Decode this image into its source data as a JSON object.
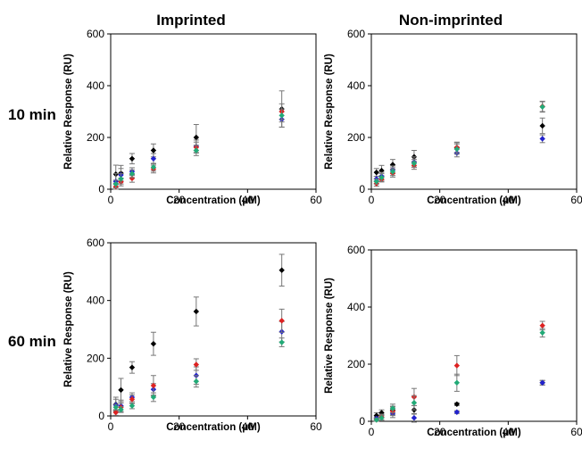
{
  "figure": {
    "col_titles": [
      "Imprinted",
      "Non-imprinted"
    ],
    "row_titles": [
      "10 min",
      "60 min"
    ]
  },
  "chart_data": [
    {
      "type": "scatter",
      "column": "Imprinted",
      "row": "10 min",
      "xlabel": "Concentration (μM)",
      "ylabel": "Relative Response (RU)",
      "xlim": [
        0,
        60
      ],
      "ylim": [
        0,
        600
      ],
      "xticks": [
        0,
        20,
        40,
        60
      ],
      "yticks": [
        0,
        200,
        400,
        600
      ],
      "x": [
        1.5,
        3,
        6.25,
        12.5,
        25,
        50
      ],
      "series": [
        {
          "color": "#000000",
          "values": [
            58,
            62,
            118,
            150,
            200,
            310
          ],
          "errors": [
            35,
            30,
            20,
            25,
            50,
            70
          ]
        },
        {
          "color": "#2222cc",
          "values": [
            30,
            55,
            68,
            118,
            165,
            270
          ],
          "errors": [
            30,
            25,
            15,
            20,
            25,
            30
          ]
        },
        {
          "color": "#dd2222",
          "values": [
            10,
            28,
            42,
            78,
            162,
            300
          ],
          "errors": [
            10,
            15,
            15,
            15,
            20,
            30
          ]
        },
        {
          "color": "#22aa77",
          "values": [
            20,
            40,
            60,
            85,
            150,
            285
          ],
          "errors": [
            15,
            20,
            15,
            15,
            20,
            25
          ]
        }
      ]
    },
    {
      "type": "scatter",
      "column": "Non-imprinted",
      "row": "10 min",
      "xlabel": "Concentration (μM)",
      "ylabel": "Relative Response (RU)",
      "xlim": [
        0,
        60
      ],
      "ylim": [
        0,
        600
      ],
      "xticks": [
        0,
        20,
        40,
        60
      ],
      "yticks": [
        0,
        200,
        400,
        600
      ],
      "x": [
        1.5,
        3,
        6.25,
        12.5,
        25,
        50
      ],
      "series": [
        {
          "color": "#000000",
          "values": [
            65,
            72,
            95,
            125,
            160,
            245
          ],
          "errors": [
            15,
            20,
            20,
            25,
            20,
            30
          ]
        },
        {
          "color": "#2222cc",
          "values": [
            40,
            50,
            75,
            105,
            140,
            195
          ],
          "errors": [
            10,
            15,
            15,
            20,
            15,
            15
          ]
        },
        {
          "color": "#dd2222",
          "values": [
            22,
            38,
            62,
            92,
            162,
            320
          ],
          "errors": [
            10,
            10,
            15,
            15,
            20,
            20
          ]
        },
        {
          "color": "#22aa77",
          "values": [
            30,
            45,
            68,
            100,
            155,
            318
          ],
          "errors": [
            10,
            15,
            15,
            15,
            20,
            20
          ]
        }
      ]
    },
    {
      "type": "scatter",
      "column": "Imprinted",
      "row": "60 min",
      "xlabel": "Concentration (μM)",
      "ylabel": "Relative Response (RU)",
      "xlim": [
        0,
        60
      ],
      "ylim": [
        0,
        600
      ],
      "xticks": [
        0,
        20,
        40,
        60
      ],
      "yticks": [
        0,
        200,
        400,
        600
      ],
      "x": [
        1.5,
        3,
        6.25,
        12.5,
        25,
        50
      ],
      "series": [
        {
          "color": "#000000",
          "values": [
            40,
            90,
            168,
            250,
            362,
            505
          ],
          "errors": [
            25,
            40,
            20,
            40,
            50,
            55
          ]
        },
        {
          "color": "#2222cc",
          "values": [
            38,
            35,
            65,
            92,
            140,
            292
          ],
          "errors": [
            20,
            20,
            15,
            20,
            30,
            35
          ]
        },
        {
          "color": "#dd2222",
          "values": [
            12,
            30,
            58,
            105,
            178,
            330
          ],
          "errors": [
            10,
            15,
            15,
            35,
            20,
            40
          ]
        },
        {
          "color": "#22aa77",
          "values": [
            30,
            22,
            35,
            65,
            120,
            255
          ],
          "errors": [
            10,
            10,
            10,
            15,
            20,
            15
          ]
        }
      ]
    },
    {
      "type": "scatter",
      "column": "Non-imprinted",
      "row": "60 min",
      "xlabel": "Concentration (μM)",
      "ylabel": "Relative Response (RU)",
      "xlim": [
        0,
        60
      ],
      "ylim": [
        0,
        600
      ],
      "xticks": [
        0,
        20,
        40,
        60
      ],
      "yticks": [
        0,
        200,
        400,
        600
      ],
      "x": [
        1.5,
        3,
        6.25,
        12.5,
        25,
        50
      ],
      "series": [
        {
          "color": "#000000",
          "values": [
            20,
            30,
            38,
            40,
            60,
            135
          ],
          "errors": [
            10,
            10,
            15,
            15,
            5,
            8
          ]
        },
        {
          "color": "#2222cc",
          "values": [
            10,
            15,
            28,
            12,
            32,
            135
          ],
          "errors": [
            5,
            10,
            15,
            15,
            5,
            8
          ]
        },
        {
          "color": "#dd2222",
          "values": [
            5,
            15,
            35,
            85,
            195,
            335
          ],
          "errors": [
            5,
            10,
            15,
            30,
            35,
            15
          ]
        },
        {
          "color": "#22aa77",
          "values": [
            5,
            12,
            45,
            65,
            135,
            310
          ],
          "errors": [
            5,
            10,
            15,
            25,
            30,
            15
          ]
        }
      ]
    }
  ]
}
